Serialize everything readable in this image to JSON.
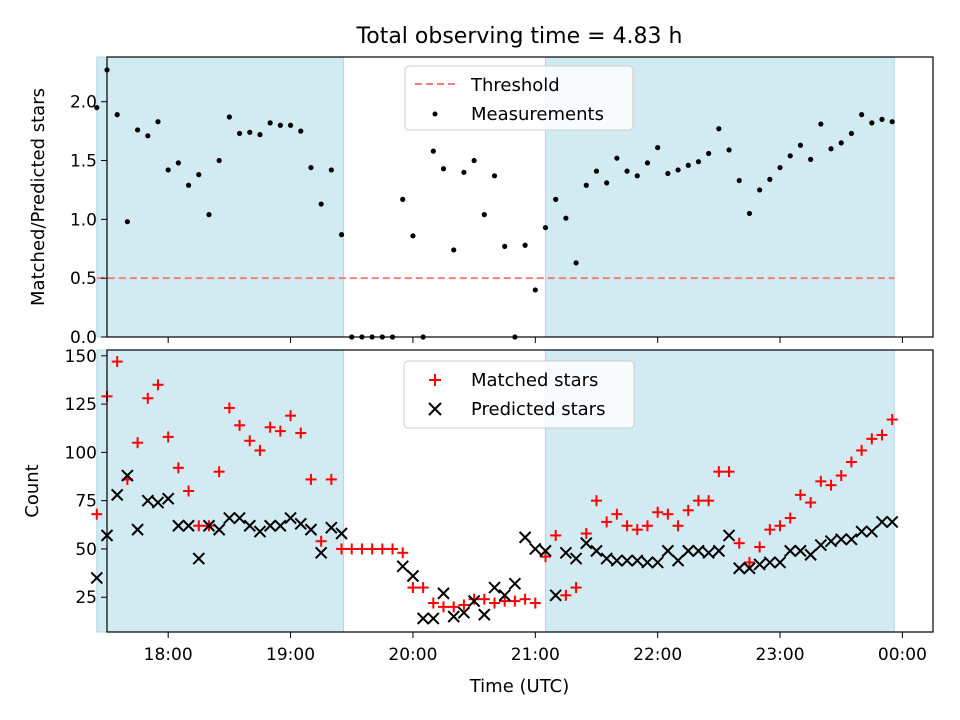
{
  "colors": {
    "shade": "#add8e6",
    "threshold": "#f08080",
    "measurements": "#000000",
    "matched": "#ff0000",
    "predicted": "#000000"
  },
  "x_ticks": [
    "18:00",
    "19:00",
    "20:00",
    "21:00",
    "22:00",
    "23:00",
    "00:00"
  ],
  "xlabel": "Time (UTC)",
  "chart_data": [
    {
      "type": "scatter",
      "title": "Total observing time = 4.83 h",
      "xlabel": "",
      "ylabel": "Matched/Predicted stars",
      "xlim": [
        "17:30",
        "00:15"
      ],
      "ylim": [
        0,
        2.38
      ],
      "y_ticks": [
        "0.0",
        "0.5",
        "1.0",
        "1.5",
        "2.0"
      ],
      "shaded_intervals": [
        [
          "17:25",
          "19:26"
        ],
        [
          "21:05",
          "23:56"
        ]
      ],
      "threshold": {
        "name": "Threshold",
        "value": 0.5,
        "x_range": [
          "17:25",
          "23:56"
        ],
        "style": "dashed"
      },
      "legend_position": "top-center",
      "series": [
        {
          "name": "Measurements",
          "points": [
            [
              "17:25",
              1.95
            ],
            [
              "17:30",
              2.27
            ],
            [
              "17:35",
              1.89
            ],
            [
              "17:40",
              0.98
            ],
            [
              "17:45",
              1.76
            ],
            [
              "17:50",
              1.71
            ],
            [
              "17:55",
              1.83
            ],
            [
              "18:00",
              1.42
            ],
            [
              "18:05",
              1.48
            ],
            [
              "18:10",
              1.29
            ],
            [
              "18:15",
              1.38
            ],
            [
              "18:20",
              1.04
            ],
            [
              "18:25",
              1.5
            ],
            [
              "18:30",
              1.87
            ],
            [
              "18:35",
              1.73
            ],
            [
              "18:40",
              1.74
            ],
            [
              "18:45",
              1.72
            ],
            [
              "18:50",
              1.82
            ],
            [
              "18:55",
              1.8
            ],
            [
              "19:00",
              1.8
            ],
            [
              "19:05",
              1.75
            ],
            [
              "19:10",
              1.44
            ],
            [
              "19:15",
              1.13
            ],
            [
              "19:20",
              1.42
            ],
            [
              "19:25",
              0.87
            ],
            [
              "19:30",
              0.0
            ],
            [
              "19:35",
              0.0
            ],
            [
              "19:40",
              0.0
            ],
            [
              "19:45",
              0.0
            ],
            [
              "19:50",
              0.0
            ],
            [
              "19:55",
              1.17
            ],
            [
              "20:00",
              0.86
            ],
            [
              "20:05",
              0.0
            ],
            [
              "20:10",
              1.58
            ],
            [
              "20:15",
              1.43
            ],
            [
              "20:20",
              0.74
            ],
            [
              "20:25",
              1.4
            ],
            [
              "20:30",
              1.5
            ],
            [
              "20:35",
              1.04
            ],
            [
              "20:40",
              1.37
            ],
            [
              "20:45",
              0.77
            ],
            [
              "20:50",
              0.0
            ],
            [
              "20:55",
              0.78
            ],
            [
              "21:00",
              0.4
            ],
            [
              "21:05",
              0.93
            ],
            [
              "21:10",
              1.17
            ],
            [
              "21:15",
              1.01
            ],
            [
              "21:20",
              0.63
            ],
            [
              "21:25",
              1.29
            ],
            [
              "21:30",
              1.41
            ],
            [
              "21:35",
              1.31
            ],
            [
              "21:40",
              1.52
            ],
            [
              "21:45",
              1.41
            ],
            [
              "21:50",
              1.37
            ],
            [
              "21:55",
              1.48
            ],
            [
              "22:00",
              1.61
            ],
            [
              "22:05",
              1.39
            ],
            [
              "22:10",
              1.42
            ],
            [
              "22:15",
              1.46
            ],
            [
              "22:20",
              1.49
            ],
            [
              "22:25",
              1.56
            ],
            [
              "22:30",
              1.77
            ],
            [
              "22:35",
              1.59
            ],
            [
              "22:40",
              1.33
            ],
            [
              "22:45",
              1.05
            ],
            [
              "22:50",
              1.25
            ],
            [
              "22:55",
              1.34
            ],
            [
              "23:00",
              1.44
            ],
            [
              "23:05",
              1.54
            ],
            [
              "23:10",
              1.63
            ],
            [
              "23:15",
              1.51
            ],
            [
              "23:20",
              1.81
            ],
            [
              "23:25",
              1.6
            ],
            [
              "23:30",
              1.65
            ],
            [
              "23:35",
              1.73
            ],
            [
              "23:40",
              1.89
            ],
            [
              "23:45",
              1.82
            ],
            [
              "23:50",
              1.85
            ],
            [
              "23:55",
              1.83
            ]
          ]
        }
      ]
    },
    {
      "type": "scatter",
      "title": "",
      "xlabel": "Time (UTC)",
      "ylabel": "Count",
      "xlim": [
        "17:30",
        "00:15"
      ],
      "ylim": [
        7,
        153
      ],
      "y_ticks": [
        "25",
        "50",
        "75",
        "100",
        "125",
        "150"
      ],
      "shaded_intervals": [
        [
          "17:25",
          "19:26"
        ],
        [
          "21:05",
          "23:56"
        ]
      ],
      "legend_position": "top-center",
      "series": [
        {
          "name": "Matched stars",
          "marker": "plus",
          "points": [
            [
              "17:25",
              68
            ],
            [
              "17:30",
              129
            ],
            [
              "17:35",
              147
            ],
            [
              "17:40",
              86
            ],
            [
              "17:45",
              105
            ],
            [
              "17:50",
              128
            ],
            [
              "17:55",
              135
            ],
            [
              "18:00",
              108
            ],
            [
              "18:05",
              92
            ],
            [
              "18:10",
              80
            ],
            [
              "18:15",
              62
            ],
            [
              "18:20",
              62
            ],
            [
              "18:25",
              90
            ],
            [
              "18:30",
              123
            ],
            [
              "18:35",
              114
            ],
            [
              "18:40",
              106
            ],
            [
              "18:45",
              101
            ],
            [
              "18:50",
              113
            ],
            [
              "18:55",
              111
            ],
            [
              "19:00",
              119
            ],
            [
              "19:05",
              110
            ],
            [
              "19:10",
              86
            ],
            [
              "19:15",
              54
            ],
            [
              "19:20",
              86
            ],
            [
              "19:25",
              50
            ],
            [
              "19:30",
              50
            ],
            [
              "19:35",
              50
            ],
            [
              "19:40",
              50
            ],
            [
              "19:45",
              50
            ],
            [
              "19:50",
              50
            ],
            [
              "19:55",
              48
            ],
            [
              "20:00",
              30
            ],
            [
              "20:05",
              30
            ],
            [
              "20:10",
              22
            ],
            [
              "20:15",
              20
            ],
            [
              "20:20",
              20
            ],
            [
              "20:25",
              21
            ],
            [
              "20:30",
              24
            ],
            [
              "20:35",
              24
            ],
            [
              "20:40",
              22
            ],
            [
              "20:45",
              23
            ],
            [
              "20:50",
              23
            ],
            [
              "20:55",
              24
            ],
            [
              "21:00",
              22
            ],
            [
              "21:05",
              46
            ],
            [
              "21:10",
              57
            ],
            [
              "21:15",
              26
            ],
            [
              "21:20",
              30
            ],
            [
              "21:25",
              58
            ],
            [
              "21:30",
              75
            ],
            [
              "21:35",
              64
            ],
            [
              "21:40",
              68
            ],
            [
              "21:45",
              62
            ],
            [
              "21:50",
              60
            ],
            [
              "21:55",
              62
            ],
            [
              "22:00",
              69
            ],
            [
              "22:05",
              68
            ],
            [
              "22:10",
              62
            ],
            [
              "22:15",
              70
            ],
            [
              "22:20",
              75
            ],
            [
              "22:25",
              75
            ],
            [
              "22:30",
              90
            ],
            [
              "22:35",
              90
            ],
            [
              "22:40",
              53
            ],
            [
              "22:45",
              43
            ],
            [
              "22:50",
              51
            ],
            [
              "22:55",
              60
            ],
            [
              "23:00",
              62
            ],
            [
              "23:05",
              66
            ],
            [
              "23:10",
              78
            ],
            [
              "23:15",
              74
            ],
            [
              "23:20",
              85
            ],
            [
              "23:25",
              83
            ],
            [
              "23:30",
              88
            ],
            [
              "23:35",
              95
            ],
            [
              "23:40",
              101
            ],
            [
              "23:45",
              107
            ],
            [
              "23:50",
              109
            ],
            [
              "23:55",
              117
            ]
          ]
        },
        {
          "name": "Predicted stars",
          "marker": "x",
          "points": [
            [
              "17:25",
              35
            ],
            [
              "17:30",
              57
            ],
            [
              "17:35",
              78
            ],
            [
              "17:40",
              88
            ],
            [
              "17:45",
              60
            ],
            [
              "17:50",
              75
            ],
            [
              "17:55",
              74
            ],
            [
              "18:00",
              76
            ],
            [
              "18:05",
              62
            ],
            [
              "18:10",
              62
            ],
            [
              "18:15",
              45
            ],
            [
              "18:20",
              62
            ],
            [
              "18:25",
              60
            ],
            [
              "18:30",
              66
            ],
            [
              "18:35",
              66
            ],
            [
              "18:40",
              62
            ],
            [
              "18:45",
              59
            ],
            [
              "18:50",
              62
            ],
            [
              "18:55",
              62
            ],
            [
              "19:00",
              66
            ],
            [
              "19:05",
              63
            ],
            [
              "19:10",
              60
            ],
            [
              "19:15",
              48
            ],
            [
              "19:20",
              61
            ],
            [
              "19:25",
              58
            ],
            [
              "19:55",
              41
            ],
            [
              "20:00",
              36
            ],
            [
              "20:05",
              14
            ],
            [
              "20:10",
              14
            ],
            [
              "20:15",
              27
            ],
            [
              "20:20",
              15
            ],
            [
              "20:25",
              17
            ],
            [
              "20:30",
              23
            ],
            [
              "20:35",
              16
            ],
            [
              "20:40",
              30
            ],
            [
              "20:45",
              26
            ],
            [
              "20:50",
              32
            ],
            [
              "20:55",
              56
            ],
            [
              "21:00",
              50
            ],
            [
              "21:05",
              49
            ],
            [
              "21:10",
              26
            ],
            [
              "21:15",
              48
            ],
            [
              "21:20",
              45
            ],
            [
              "21:25",
              53
            ],
            [
              "21:30",
              49
            ],
            [
              "21:35",
              45
            ],
            [
              "21:40",
              44
            ],
            [
              "21:45",
              44
            ],
            [
              "21:50",
              44
            ],
            [
              "21:55",
              43
            ],
            [
              "22:00",
              43
            ],
            [
              "22:05",
              49
            ],
            [
              "22:10",
              44
            ],
            [
              "22:15",
              49
            ],
            [
              "22:20",
              49
            ],
            [
              "22:25",
              48
            ],
            [
              "22:30",
              49
            ],
            [
              "22:35",
              57
            ],
            [
              "22:40",
              40
            ],
            [
              "22:45",
              40
            ],
            [
              "22:50",
              42
            ],
            [
              "22:55",
              43
            ],
            [
              "23:00",
              43
            ],
            [
              "23:05",
              49
            ],
            [
              "23:10",
              49
            ],
            [
              "23:15",
              47
            ],
            [
              "23:20",
              52
            ],
            [
              "23:25",
              54
            ],
            [
              "23:30",
              55
            ],
            [
              "23:35",
              55
            ],
            [
              "23:40",
              59
            ],
            [
              "23:45",
              59
            ],
            [
              "23:50",
              64
            ],
            [
              "23:55",
              64
            ]
          ]
        }
      ]
    }
  ]
}
